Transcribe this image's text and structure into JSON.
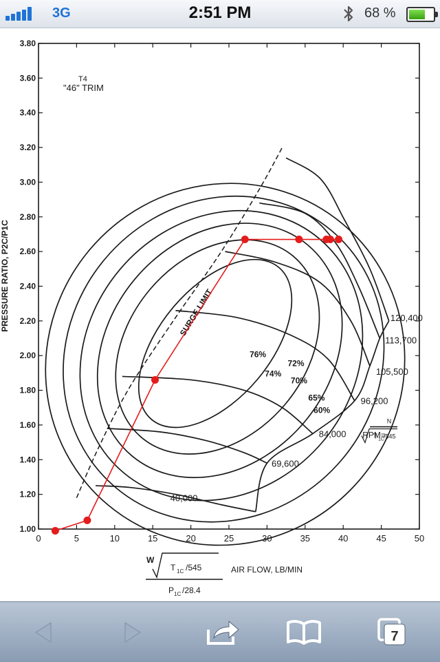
{
  "status_bar": {
    "carrier": "3G",
    "time": "2:51 PM",
    "battery_pct": "68 %",
    "battery_level": 0.68
  },
  "toolbar": {
    "tabs_count": "7"
  },
  "chart_data": {
    "type": "line",
    "title": "\"46\" TRIM",
    "title_sup": "T4",
    "xlabel": "AIR FLOW, LB/MIN",
    "ylabel": "PRESSURE RATIO, P2C/P1C",
    "xlim": [
      0,
      50
    ],
    "ylim": [
      1.0,
      3.8
    ],
    "x_ticks": [
      "0",
      "5",
      "10",
      "15",
      "20",
      "25",
      "30",
      "35",
      "40",
      "45",
      "50"
    ],
    "y_ticks": [
      "1.00",
      "1.20",
      "1.40",
      "1.60",
      "1.80",
      "2.00",
      "2.20",
      "2.40",
      "2.60",
      "2.80",
      "3.00",
      "3.20",
      "3.40",
      "3.60",
      "3.80"
    ],
    "x_formula": {
      "top_w": "W",
      "top_t": "T",
      "top_t_sub": "1C",
      "top_den": "/545",
      "bottom_p": "P",
      "bottom_p_sub": "1C",
      "bottom_den": "/28.4"
    },
    "rpm_formula": {
      "label": "RPM=",
      "num": "N",
      "t": "T",
      "t_sub": "1C",
      "den": "/545"
    },
    "surge_limit": {
      "label": "SURGE LIMIT",
      "x": [
        5,
        8,
        12,
        18,
        24,
        29,
        32
      ],
      "y": [
        1.18,
        1.48,
        1.82,
        2.22,
        2.6,
        2.96,
        3.2
      ]
    },
    "speed_lines": [
      {
        "label": "40,000",
        "label_at": [
          17.3,
          1.16
        ],
        "x": [
          7.5,
          12,
          18,
          24,
          28.5
        ],
        "y": [
          1.25,
          1.24,
          1.2,
          1.14,
          1.1
        ]
      },
      {
        "label": "69,600",
        "label_at": [
          30.6,
          1.36
        ],
        "x": [
          9,
          16,
          22,
          27,
          30
        ],
        "y": [
          1.58,
          1.56,
          1.51,
          1.44,
          1.38
        ]
      },
      {
        "label": "84,000",
        "label_at": [
          36.8,
          1.53
        ],
        "x": [
          11,
          20,
          27,
          32,
          36
        ],
        "y": [
          1.88,
          1.86,
          1.8,
          1.7,
          1.55
        ]
      },
      {
        "label": "96,200",
        "label_at": [
          42.3,
          1.72
        ],
        "x": [
          18,
          26,
          33,
          38,
          41.5
        ],
        "y": [
          2.26,
          2.22,
          2.12,
          1.98,
          1.74
        ]
      },
      {
        "label": "105,500",
        "label_at": [
          44.3,
          1.89
        ],
        "x": [
          24.5,
          31,
          37,
          41,
          43.5
        ],
        "y": [
          2.6,
          2.54,
          2.42,
          2.2,
          1.94
        ]
      },
      {
        "label": "113,700",
        "label_at": [
          45.5,
          2.07
        ],
        "x": [
          29,
          35,
          39,
          42,
          44.8
        ],
        "y": [
          2.88,
          2.82,
          2.65,
          2.4,
          2.1
        ]
      },
      {
        "label": "120,400",
        "label_at": [
          46.2,
          2.2
        ],
        "x": [
          32.5,
          37,
          40.2,
          43.5,
          46
        ],
        "y": [
          3.14,
          3.02,
          2.78,
          2.5,
          2.2
        ]
      }
    ],
    "choke_boundary": {
      "x": [
        28.5,
        30,
        36,
        41.5,
        43.5,
        44.8,
        46
      ],
      "y": [
        1.1,
        1.38,
        1.55,
        1.74,
        1.94,
        2.1,
        2.2
      ]
    },
    "efficiency_islands": [
      {
        "label": "60%",
        "label_at": [
          37.2,
          1.67
        ],
        "cx": 24.5,
        "cy": 1.95,
        "rx": 24,
        "ry": 0.32,
        "angle": -50
      },
      {
        "label": "65%",
        "label_at": [
          36.5,
          1.74
        ],
        "cx": 24.3,
        "cy": 1.98,
        "rx": 22,
        "ry": 0.28,
        "angle": -50
      },
      {
        "label": "70%",
        "label_at": [
          34.2,
          1.84
        ],
        "cx": 24.0,
        "cy": 2.0,
        "rx": 20,
        "ry": 0.24,
        "angle": -50
      },
      {
        "label": "72%",
        "label_at": [
          33.8,
          1.94
        ],
        "cx": 23.8,
        "cy": 2.03,
        "rx": 18,
        "ry": 0.2,
        "angle": -50
      },
      {
        "label": "74%",
        "label_at": [
          30.8,
          1.88
        ],
        "cx": 23.5,
        "cy": 2.05,
        "rx": 15.5,
        "ry": 0.16,
        "angle": -50
      },
      {
        "label": "76%",
        "label_at": [
          28.8,
          1.99
        ],
        "cx": 23.2,
        "cy": 2.07,
        "rx": 13,
        "ry": 0.1,
        "angle": -50
      }
    ],
    "operating_line": {
      "x": [
        2.2,
        6.4,
        15.3,
        27.1
      ],
      "y": [
        0.99,
        1.05,
        1.86,
        2.67
      ]
    },
    "operating_points": {
      "x": [
        2.2,
        6.4,
        15.3,
        27.1,
        34.2,
        37.8,
        38.3,
        39.4
      ],
      "y": [
        0.99,
        1.05,
        1.86,
        2.67,
        2.67,
        2.67,
        2.67,
        2.67
      ]
    },
    "operating_hline": {
      "x": [
        27.1,
        39.4
      ],
      "y": [
        2.67,
        2.67
      ]
    },
    "colors": {
      "ink": "#1a1a1a",
      "operating": "#e41c1c"
    },
    "grid": false,
    "legend": "none"
  }
}
